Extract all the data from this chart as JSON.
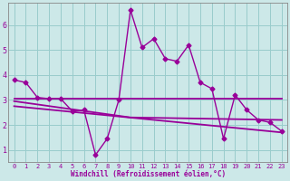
{
  "background_color": "#cce8e8",
  "plot_bg_color": "#cce8e8",
  "line_color": "#990099",
  "grid_color": "#99cccc",
  "xlabel": "Windchill (Refroidissement éolien,°C)",
  "xlabel_color": "#990099",
  "xlim": [
    -0.5,
    23.5
  ],
  "ylim": [
    0.5,
    6.9
  ],
  "yticks": [
    1,
    2,
    3,
    4,
    5,
    6
  ],
  "xticks": [
    0,
    1,
    2,
    3,
    4,
    5,
    6,
    7,
    8,
    9,
    10,
    11,
    12,
    13,
    14,
    15,
    16,
    17,
    18,
    19,
    20,
    21,
    22,
    23
  ],
  "series": [
    {
      "x": [
        0,
        1,
        2,
        3,
        4,
        5,
        6,
        7,
        8,
        9,
        10,
        11,
        12,
        13,
        14,
        15,
        16,
        17,
        18,
        19,
        20,
        21,
        22,
        23
      ],
      "y": [
        3.8,
        3.7,
        3.1,
        3.05,
        3.05,
        2.55,
        2.6,
        0.8,
        1.45,
        3.0,
        6.6,
        5.1,
        5.45,
        4.65,
        4.55,
        5.2,
        3.7,
        3.45,
        1.45,
        3.2,
        2.6,
        2.2,
        2.1,
        1.75
      ],
      "marker": "D",
      "markersize": 2.5,
      "linewidth": 1.0
    },
    {
      "x": [
        0,
        23
      ],
      "y": [
        3.05,
        3.05
      ],
      "marker": null,
      "linewidth": 1.3
    },
    {
      "x": [
        0,
        10,
        23
      ],
      "y": [
        2.95,
        2.3,
        2.2
      ],
      "marker": null,
      "linewidth": 1.3
    },
    {
      "x": [
        0,
        23
      ],
      "y": [
        2.75,
        1.7
      ],
      "marker": null,
      "linewidth": 1.3
    }
  ]
}
